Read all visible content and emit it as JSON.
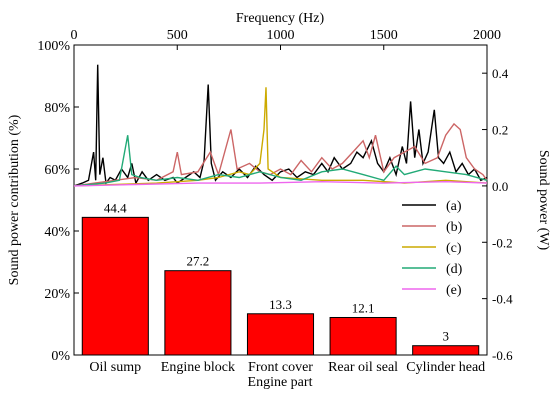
{
  "chart_data": [
    {
      "type": "bar",
      "categories": [
        "Oil sump",
        "Engine block",
        "Front cover",
        "Rear oil seal",
        "Cylinder head"
      ],
      "values": [
        44.4,
        27.2,
        13.3,
        12.1,
        3
      ],
      "data_labels": [
        "44.4",
        "27.2",
        "13.3",
        "12.1",
        "3"
      ],
      "xlabel": "Engine part",
      "ylabel": "Sound power contribution (%)",
      "ylim": [
        0,
        100
      ],
      "yticks": [
        "0%",
        "20%",
        "40%",
        "60%",
        "80%",
        "100%"
      ],
      "bar_color": "#ff0000",
      "bar_edge_color": "#000000"
    },
    {
      "type": "line",
      "xlabel": "Frequency (Hz)",
      "ylabel": "Sound power (W)",
      "xlim": [
        0,
        2000
      ],
      "ylim": [
        -0.6,
        0.5
      ],
      "xticks": [
        "0",
        "500",
        "1000",
        "1500",
        "2000"
      ],
      "yticks": [
        "-0.6",
        "-0.4",
        "-0.2",
        "0.0",
        "0.2",
        "0.4"
      ],
      "legend_position": "right",
      "series": [
        {
          "name": "(a)",
          "color": "#000000",
          "points": [
            [
              0,
              0
            ],
            [
              20,
              0.005
            ],
            [
              40,
              0.01
            ],
            [
              70,
              0.02
            ],
            [
              95,
              0.12
            ],
            [
              105,
              0.02
            ],
            [
              115,
              0.43
            ],
            [
              125,
              0.04
            ],
            [
              140,
              0.1
            ],
            [
              155,
              0.01
            ],
            [
              175,
              0.03
            ],
            [
              200,
              0.02
            ],
            [
              230,
              0.06
            ],
            [
              260,
              0.03
            ],
            [
              280,
              0.08
            ],
            [
              300,
              0.01
            ],
            [
              330,
              0.05
            ],
            [
              360,
              0.02
            ],
            [
              400,
              0.04
            ],
            [
              440,
              0.02
            ],
            [
              480,
              0.03
            ],
            [
              500,
              0.01
            ],
            [
              540,
              0.03
            ],
            [
              580,
              0.05
            ],
            [
              610,
              0.03
            ],
            [
              630,
              0.09
            ],
            [
              650,
              0.36
            ],
            [
              665,
              0.08
            ],
            [
              685,
              0.02
            ],
            [
              720,
              0.05
            ],
            [
              760,
              0.03
            ],
            [
              800,
              0.06
            ],
            [
              840,
              0.03
            ],
            [
              880,
              0.07
            ],
            [
              920,
              0.04
            ],
            [
              960,
              0.02
            ],
            [
              1000,
              0.05
            ],
            [
              1040,
              0.06
            ],
            [
              1080,
              0.03
            ],
            [
              1120,
              0.05
            ],
            [
              1160,
              0.04
            ],
            [
              1200,
              0.08
            ],
            [
              1230,
              0.05
            ],
            [
              1260,
              0.1
            ],
            [
              1300,
              0.06
            ],
            [
              1340,
              0.08
            ],
            [
              1370,
              0.12
            ],
            [
              1400,
              0.1
            ],
            [
              1440,
              0.16
            ],
            [
              1470,
              0.08
            ],
            [
              1500,
              0.05
            ],
            [
              1530,
              0.1
            ],
            [
              1560,
              0.04
            ],
            [
              1590,
              0.14
            ],
            [
              1610,
              0.08
            ],
            [
              1630,
              0.3
            ],
            [
              1650,
              0.1
            ],
            [
              1670,
              0.2
            ],
            [
              1690,
              0.08
            ],
            [
              1715,
              0.12
            ],
            [
              1745,
              0.27
            ],
            [
              1765,
              0.1
            ],
            [
              1790,
              0.08
            ],
            [
              1820,
              0.12
            ],
            [
              1850,
              0.05
            ],
            [
              1880,
              0.08
            ],
            [
              1910,
              0.04
            ],
            [
              1940,
              0.06
            ],
            [
              1970,
              0.02
            ],
            [
              2000,
              0.03
            ]
          ]
        },
        {
          "name": "(b)",
          "color": "#cc6666",
          "points": [
            [
              0,
              0
            ],
            [
              100,
              0.01
            ],
            [
              200,
              0.02
            ],
            [
              300,
              0.03
            ],
            [
              400,
              0.02
            ],
            [
              480,
              0.05
            ],
            [
              500,
              0.12
            ],
            [
              520,
              0.04
            ],
            [
              600,
              0.05
            ],
            [
              660,
              0.12
            ],
            [
              700,
              0.04
            ],
            [
              760,
              0.2
            ],
            [
              790,
              0.06
            ],
            [
              850,
              0.08
            ],
            [
              900,
              0.05
            ],
            [
              950,
              0.04
            ],
            [
              1000,
              0.06
            ],
            [
              1050,
              0.04
            ],
            [
              1100,
              0.09
            ],
            [
              1150,
              0.05
            ],
            [
              1200,
              0.1
            ],
            [
              1250,
              0.06
            ],
            [
              1300,
              0.08
            ],
            [
              1350,
              0.12
            ],
            [
              1400,
              0.16
            ],
            [
              1430,
              0.1
            ],
            [
              1460,
              0.18
            ],
            [
              1500,
              0.05
            ],
            [
              1550,
              0.1
            ],
            [
              1600,
              0.12
            ],
            [
              1650,
              0.14
            ],
            [
              1700,
              0.08
            ],
            [
              1760,
              0.1
            ],
            [
              1800,
              0.18
            ],
            [
              1840,
              0.22
            ],
            [
              1870,
              0.2
            ],
            [
              1900,
              0.1
            ],
            [
              1940,
              0.06
            ],
            [
              1980,
              0.04
            ],
            [
              2000,
              0.02
            ]
          ]
        },
        {
          "name": "(c)",
          "color": "#ccaa00",
          "points": [
            [
              0,
              0
            ],
            [
              200,
              0.005
            ],
            [
              400,
              0.01
            ],
            [
              600,
              0.02
            ],
            [
              700,
              0.03
            ],
            [
              800,
              0.05
            ],
            [
              850,
              0.04
            ],
            [
              900,
              0.08
            ],
            [
              920,
              0.2
            ],
            [
              930,
              0.35
            ],
            [
              940,
              0.06
            ],
            [
              1000,
              0.03
            ],
            [
              1200,
              0.02
            ],
            [
              1400,
              0.02
            ],
            [
              1600,
              0.01
            ],
            [
              1800,
              0.02
            ],
            [
              2000,
              0.01
            ]
          ]
        },
        {
          "name": "(d)",
          "color": "#22aa77",
          "points": [
            [
              0,
              0
            ],
            [
              150,
              0.01
            ],
            [
              220,
              0.02
            ],
            [
              260,
              0.18
            ],
            [
              280,
              0.04
            ],
            [
              320,
              0.03
            ],
            [
              400,
              0.02
            ],
            [
              500,
              0.03
            ],
            [
              600,
              0.02
            ],
            [
              700,
              0.04
            ],
            [
              800,
              0.03
            ],
            [
              900,
              0.05
            ],
            [
              1000,
              0.03
            ],
            [
              1100,
              0.02
            ],
            [
              1200,
              0.05
            ],
            [
              1300,
              0.06
            ],
            [
              1400,
              0.04
            ],
            [
              1500,
              0.02
            ],
            [
              1560,
              0.07
            ],
            [
              1600,
              0.04
            ],
            [
              1700,
              0.06
            ],
            [
              1800,
              0.05
            ],
            [
              1900,
              0.04
            ],
            [
              2000,
              0.02
            ]
          ]
        },
        {
          "name": "(e)",
          "color": "#ee66ee",
          "points": [
            [
              0,
              0
            ],
            [
              300,
              0.005
            ],
            [
              600,
              0.01
            ],
            [
              900,
              0.01
            ],
            [
              1200,
              0.015
            ],
            [
              1500,
              0.01
            ],
            [
              1800,
              0.015
            ],
            [
              2000,
              0.01
            ]
          ]
        }
      ]
    }
  ]
}
